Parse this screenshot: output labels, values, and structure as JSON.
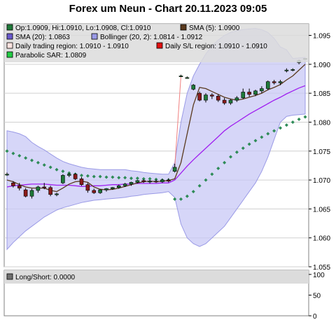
{
  "chart_title": "Forex um Neun - Chart 20.11.2023 09:05",
  "colors": {
    "candle_up": "#1f7a3a",
    "candle_down": "#8b1a1a",
    "sma5": "#5a3a1e",
    "sma20": "#a020f0",
    "bollinger_fill": "#c8c8f5",
    "bollinger_edge": "#9a9ae6",
    "sar": "#2e8b57",
    "gap_line": "#f08080",
    "legend_bg": "#dcdcdc",
    "grid": "#d0d0d0"
  },
  "legend": [
    {
      "text": "Op:1.0909, Hi:1.0910, Lo:1.0908, Cl:1.0910",
      "swatch": "#1f7a3a",
      "icon": "green-square-icon"
    },
    {
      "text": "SMA (5): 1.0900",
      "swatch": "#5a3a1e",
      "icon": "brown-square-icon"
    },
    {
      "text": "SMA (20): 1.0863",
      "swatch": "#6a5acd",
      "icon": "purple-square-icon"
    },
    {
      "text": "Bollinger (20, 2): 1.0814 - 1.0912",
      "swatch": "#9a9ae6",
      "icon": "lavender-square-icon"
    },
    {
      "text": "Daily trading region: 1.0910 - 1.0910",
      "swatch": "#ffe4e1",
      "icon": "pink-square-icon"
    },
    {
      "text": "Daily S/L region: 1.0910 - 1.0910",
      "swatch": "#e01010",
      "icon": "red-square-icon"
    },
    {
      "text": "Parabolic SAR: 1.0809",
      "swatch": "#22cc44",
      "icon": "bright-green-square-icon"
    }
  ],
  "lower_panel": {
    "legend_text": "Long/Short: 0.0000",
    "swatch": "#707070",
    "icon": "gray-square-icon",
    "y_ticks": [
      "100",
      "50",
      "0"
    ],
    "y_tick_values": [
      100,
      50,
      0
    ],
    "ylim": [
      0,
      110
    ]
  },
  "chart_data": {
    "type": "candlestick",
    "ylim": [
      1.055,
      1.097
    ],
    "y_ticks": [
      1.055,
      1.06,
      1.065,
      1.07,
      1.075,
      1.08,
      1.085,
      1.09,
      1.095
    ],
    "y_tick_labels": [
      "1.055",
      "1.060",
      "1.065",
      "1.070",
      "1.075",
      "1.080",
      "1.085",
      "1.090",
      "1.095"
    ],
    "grid": true,
    "candles": [
      {
        "o": 1.071,
        "h": 1.0713,
        "l": 1.0707,
        "c": 1.071
      },
      {
        "o": 1.0695,
        "h": 1.0698,
        "l": 1.0687,
        "c": 1.069
      },
      {
        "o": 1.069,
        "h": 1.0695,
        "l": 1.0682,
        "c": 1.0686
      },
      {
        "o": 1.0683,
        "h": 1.0686,
        "l": 1.067,
        "c": 1.0672
      },
      {
        "o": 1.0672,
        "h": 1.0685,
        "l": 1.0668,
        "c": 1.0682
      },
      {
        "o": 1.0682,
        "h": 1.069,
        "l": 1.0678,
        "c": 1.0688
      },
      {
        "o": 1.0688,
        "h": 1.0695,
        "l": 1.0684,
        "c": 1.0687
      },
      {
        "o": 1.0687,
        "h": 1.069,
        "l": 1.0672,
        "c": 1.0675
      },
      {
        "o": 1.0675,
        "h": 1.0678,
        "l": 1.0672,
        "c": 1.0676
      },
      {
        "o": 1.0695,
        "h": 1.071,
        "l": 1.0693,
        "c": 1.0708
      },
      {
        "o": 1.0708,
        "h": 1.0712,
        "l": 1.0705,
        "c": 1.071
      },
      {
        "o": 1.071,
        "h": 1.0712,
        "l": 1.07,
        "c": 1.0702
      },
      {
        "o": 1.0702,
        "h": 1.0705,
        "l": 1.069,
        "c": 1.0692
      },
      {
        "o": 1.0692,
        "h": 1.0695,
        "l": 1.0678,
        "c": 1.0682
      },
      {
        "o": 1.0682,
        "h": 1.0685,
        "l": 1.0676,
        "c": 1.0678
      },
      {
        "o": 1.0678,
        "h": 1.0684,
        "l": 1.0676,
        "c": 1.0683
      },
      {
        "o": 1.0683,
        "h": 1.0686,
        "l": 1.068,
        "c": 1.0685
      },
      {
        "o": 1.0685,
        "h": 1.0688,
        "l": 1.0683,
        "c": 1.0687
      },
      {
        "o": 1.0687,
        "h": 1.0692,
        "l": 1.0685,
        "c": 1.069
      },
      {
        "o": 1.069,
        "h": 1.0695,
        "l": 1.0688,
        "c": 1.0693
      },
      {
        "o": 1.0693,
        "h": 1.0697,
        "l": 1.069,
        "c": 1.0696
      },
      {
        "o": 1.0696,
        "h": 1.07,
        "l": 1.0694,
        "c": 1.0699
      },
      {
        "o": 1.0699,
        "h": 1.0701,
        "l": 1.0695,
        "c": 1.0697
      },
      {
        "o": 1.0697,
        "h": 1.07,
        "l": 1.0694,
        "c": 1.0698
      },
      {
        "o": 1.0698,
        "h": 1.0701,
        "l": 1.0695,
        "c": 1.0697
      },
      {
        "o": 1.0697,
        "h": 1.0702,
        "l": 1.0695,
        "c": 1.07
      },
      {
        "o": 1.07,
        "h": 1.0703,
        "l": 1.0696,
        "c": 1.0698
      },
      {
        "o": 1.0715,
        "h": 1.0728,
        "l": 1.0713,
        "c": 1.0722
      },
      {
        "o": 1.088,
        "h": 1.0882,
        "l": 1.0878,
        "c": 1.088
      },
      {
        "o": 1.0877,
        "h": 1.0879,
        "l": 1.0875,
        "c": 1.0877
      },
      {
        "o": 1.0857,
        "h": 1.0866,
        "l": 1.0855,
        "c": 1.0864
      },
      {
        "o": 1.085,
        "h": 1.0853,
        "l": 1.0836,
        "c": 1.0838
      },
      {
        "o": 1.0838,
        "h": 1.085,
        "l": 1.0834,
        "c": 1.0847
      },
      {
        "o": 1.0847,
        "h": 1.085,
        "l": 1.084,
        "c": 1.0845
      },
      {
        "o": 1.0845,
        "h": 1.0848,
        "l": 1.0835,
        "c": 1.0838
      },
      {
        "o": 1.0838,
        "h": 1.0842,
        "l": 1.083,
        "c": 1.0833
      },
      {
        "o": 1.0833,
        "h": 1.084,
        "l": 1.083,
        "c": 1.0838
      },
      {
        "o": 1.0838,
        "h": 1.0845,
        "l": 1.0835,
        "c": 1.0842
      },
      {
        "o": 1.0842,
        "h": 1.0858,
        "l": 1.084,
        "c": 1.0852
      },
      {
        "o": 1.0852,
        "h": 1.0858,
        "l": 1.0844,
        "c": 1.0848
      },
      {
        "o": 1.0848,
        "h": 1.0856,
        "l": 1.0845,
        "c": 1.0854
      },
      {
        "o": 1.0854,
        "h": 1.0862,
        "l": 1.085,
        "c": 1.0858
      },
      {
        "o": 1.0858,
        "h": 1.0872,
        "l": 1.0855,
        "c": 1.087
      },
      {
        "o": 1.087,
        "h": 1.0873,
        "l": 1.0865,
        "c": 1.0868
      },
      {
        "o": 1.0868,
        "h": 1.0873,
        "l": 1.0864,
        "c": 1.087
      },
      {
        "o": 1.089,
        "h": 1.0893,
        "l": 1.0886,
        "c": 1.089
      },
      {
        "o": 1.089,
        "h": 1.0893,
        "l": 1.0888,
        "c": 1.0891
      },
      {
        "o": 1.0903,
        "h": 1.0908,
        "l": 1.09,
        "c": 1.0906
      },
      {
        "o": 1.0909,
        "h": 1.091,
        "l": 1.0908,
        "c": 1.091
      }
    ],
    "sma5": [
      1.07,
      1.0697,
      1.0692,
      1.0688,
      1.0686,
      1.0686,
      1.0686,
      1.0682,
      1.068,
      1.0686,
      1.0693,
      1.0697,
      1.0698,
      1.0696,
      1.0688,
      1.0684,
      1.0683,
      1.0684,
      1.0686,
      1.0689,
      1.0692,
      1.0695,
      1.0697,
      1.0698,
      1.0697,
      1.0698,
      1.0699,
      1.0702,
      1.073,
      1.078,
      1.083,
      1.086,
      1.0858,
      1.0853,
      1.0848,
      1.0843,
      1.084,
      1.0838,
      1.084,
      1.0843,
      1.0846,
      1.085,
      1.0856,
      1.086,
      1.0865,
      1.0873,
      1.088,
      1.089,
      1.09
    ],
    "sma20": [
      1.0688,
      1.069,
      1.0691,
      1.0692,
      1.0693,
      1.0693,
      1.0693,
      1.0692,
      1.0691,
      1.0691,
      1.0691,
      1.069,
      1.0689,
      1.0689,
      1.069,
      1.069,
      1.0691,
      1.0692,
      1.0692,
      1.0693,
      1.0693,
      1.0694,
      1.0694,
      1.0694,
      1.0694,
      1.0695,
      1.0695,
      1.07,
      1.0712,
      1.0724,
      1.0735,
      1.0745,
      1.0755,
      1.0765,
      1.0775,
      1.0785,
      1.0793,
      1.08,
      1.0807,
      1.0814,
      1.082,
      1.0826,
      1.0832,
      1.0838,
      1.0843,
      1.0849,
      1.0854,
      1.0859,
      1.0863
    ],
    "boll_upper": [
      1.0785,
      1.0783,
      1.078,
      1.0775,
      1.0765,
      1.0758,
      1.0752,
      1.0745,
      1.0738,
      1.0732,
      1.0728,
      1.0725,
      1.0722,
      1.072,
      1.0719,
      1.0718,
      1.0718,
      1.0718,
      1.0718,
      1.0718,
      1.0716,
      1.0715,
      1.0713,
      1.0712,
      1.0711,
      1.071,
      1.071,
      1.073,
      1.08,
      1.085,
      1.088,
      1.09,
      1.0918,
      1.0932,
      1.0942,
      1.095,
      1.0955,
      1.0958,
      1.096,
      1.0961,
      1.0962,
      1.096,
      1.0955,
      1.0945,
      1.093,
      1.0925,
      1.091,
      1.0911,
      1.0912
    ],
    "boll_lower": [
      1.058,
      1.0592,
      1.0602,
      1.0612,
      1.062,
      1.0628,
      1.0636,
      1.0642,
      1.0648,
      1.0652,
      1.0655,
      1.0658,
      1.0661,
      1.0663,
      1.0665,
      1.0666,
      1.0667,
      1.0668,
      1.0669,
      1.067,
      1.0672,
      1.0673,
      1.0675,
      1.0676,
      1.0677,
      1.0678,
      1.068,
      1.067,
      1.0624,
      1.06,
      1.059,
      1.0585,
      1.059,
      1.06,
      1.061,
      1.062,
      1.0635,
      1.065,
      1.0665,
      1.068,
      1.0695,
      1.0715,
      1.074,
      1.077,
      1.08,
      1.081,
      1.0812,
      1.0813,
      1.0814
    ],
    "sar": [
      1.075,
      1.0746,
      1.0742,
      1.0738,
      1.0734,
      1.073,
      1.0726,
      1.0722,
      1.0718,
      1.0715,
      1.0712,
      1.071,
      1.0708,
      1.0707,
      1.0706,
      1.0706,
      1.0705,
      1.0705,
      1.0704,
      1.0704,
      1.0703,
      1.0703,
      1.0702,
      1.0702,
      1.0701,
      1.07,
      1.07,
      1.0667,
      1.0667,
      1.0672,
      1.068,
      1.069,
      1.07,
      1.071,
      1.072,
      1.073,
      1.074,
      1.0748,
      1.0755,
      1.0762,
      1.0768,
      1.0774,
      1.078,
      1.0785,
      1.079,
      1.0795,
      1.08,
      1.0805,
      1.0809
    ],
    "sar_early": [
      1.0665,
      1.0666,
      1.0667,
      1.0668,
      1.067,
      1.0672,
      1.0674,
      1.0676,
      1.0678,
      1.068
    ]
  }
}
